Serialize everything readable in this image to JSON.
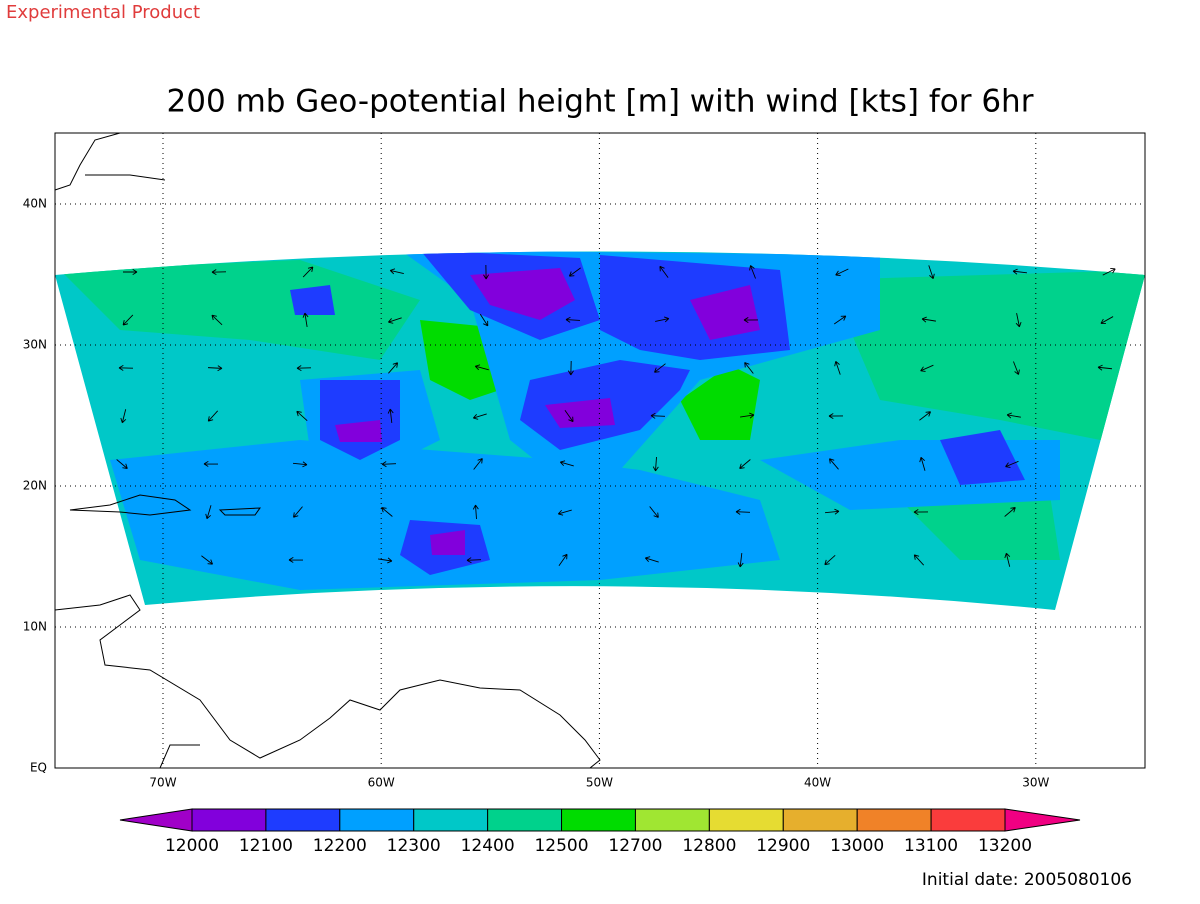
{
  "header": {
    "note": "Experimental Product",
    "title": "200 mb Geo-potential height [m] with wind [kts] for 6hr"
  },
  "map": {
    "lat_labels": [
      "EQ",
      "10N",
      "20N",
      "30N",
      "40N"
    ],
    "lon_labels": [
      "70W",
      "60W",
      "50W",
      "40W",
      "30W"
    ]
  },
  "colorbar": {
    "labels": [
      12000,
      12100,
      12200,
      12300,
      12400,
      12500,
      12700,
      12800,
      12900,
      13000,
      13100,
      13200
    ],
    "colors": [
      "#a000c8",
      "#8200dc",
      "#1e3cff",
      "#00a0ff",
      "#00c8c8",
      "#00d28c",
      "#00dc00",
      "#a0e632",
      "#e6dc32",
      "#e6af2d",
      "#f08228",
      "#fa3c3c",
      "#f00082"
    ]
  },
  "footer": {
    "initial_date": "Initial date: 2005080106"
  }
}
